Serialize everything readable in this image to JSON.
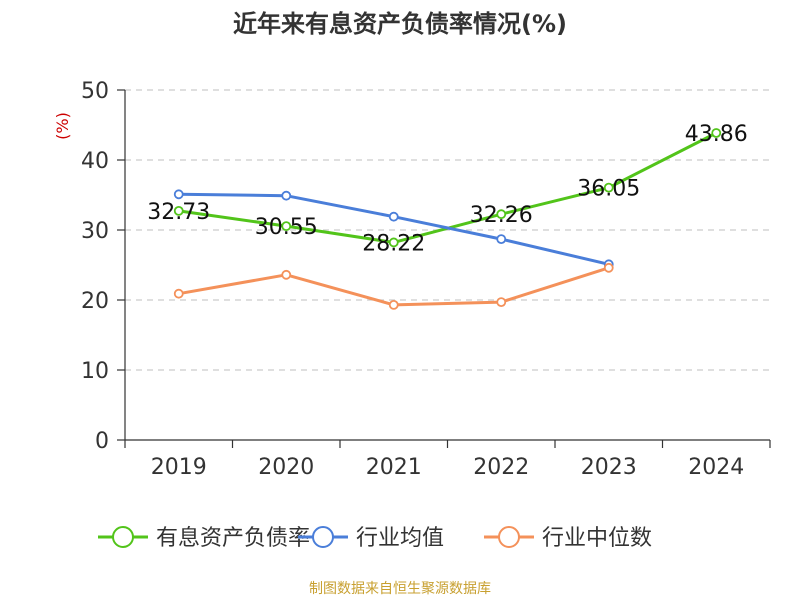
{
  "chart_data": {
    "type": "line",
    "title": "近年来有息资产负债率情况(%)",
    "ylabel": "(%)",
    "xlabel": "",
    "categories": [
      "2019",
      "2020",
      "2021",
      "2022",
      "2023",
      "2024"
    ],
    "ylim": [
      0,
      50
    ],
    "yticks": [
      0,
      10,
      20,
      30,
      40,
      50
    ],
    "series": [
      {
        "name": "有息资产负债率",
        "color": "#52c41a",
        "values": [
          32.73,
          30.55,
          28.22,
          32.26,
          36.05,
          43.86
        ],
        "labels": [
          "32.73",
          "30.55",
          "28.22",
          "32.26",
          "36.05",
          "43.86"
        ]
      },
      {
        "name": "行业均值",
        "color": "#4a7ed9",
        "values": [
          35.1,
          34.9,
          31.9,
          28.7,
          25.1,
          null
        ]
      },
      {
        "name": "行业中位数",
        "color": "#f4915a",
        "values": [
          20.9,
          23.6,
          19.3,
          19.7,
          24.6,
          null
        ]
      }
    ],
    "legend_position": "bottom",
    "grid": true,
    "source": "制图数据来自恒生聚源数据库"
  }
}
